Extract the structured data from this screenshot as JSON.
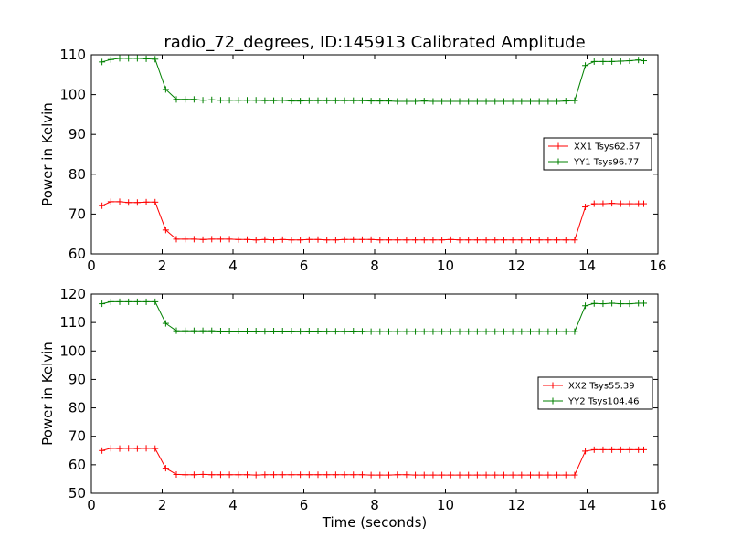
{
  "figure": {
    "title": "radio_72_degrees, ID:145913 Calibrated Amplitude",
    "xlabel": "Time (seconds)"
  },
  "chart_data": [
    {
      "type": "line",
      "title": "radio_72_degrees, ID:145913 Calibrated Amplitude",
      "xlabel": "",
      "ylabel": "Power in Kelvin",
      "xlim": [
        0,
        16
      ],
      "ylim": [
        60,
        110
      ],
      "xticks": [
        0,
        2,
        4,
        6,
        8,
        10,
        12,
        14,
        16
      ],
      "yticks": [
        60,
        70,
        80,
        90,
        100,
        110
      ],
      "grid": false,
      "legend_position": "center-right",
      "x": [
        0.3,
        0.55,
        0.8,
        1.05,
        1.3,
        1.55,
        1.8,
        2.1,
        2.4,
        2.65,
        2.9,
        3.15,
        3.4,
        3.65,
        3.9,
        4.15,
        4.4,
        4.65,
        4.9,
        5.15,
        5.4,
        5.65,
        5.9,
        6.15,
        6.4,
        6.65,
        6.9,
        7.15,
        7.4,
        7.65,
        7.9,
        8.15,
        8.4,
        8.65,
        8.9,
        9.15,
        9.4,
        9.65,
        9.9,
        10.15,
        10.4,
        10.65,
        10.9,
        11.15,
        11.4,
        11.65,
        11.9,
        12.15,
        12.4,
        12.65,
        12.9,
        13.15,
        13.4,
        13.65,
        13.95,
        14.2,
        14.45,
        14.7,
        14.95,
        15.2,
        15.45,
        15.6
      ],
      "series": [
        {
          "name": "XX1 Tsys62.57",
          "color": "#ff0000",
          "values": [
            72.1,
            73.1,
            73.1,
            72.9,
            72.9,
            73.0,
            73.0,
            66.0,
            63.7,
            63.7,
            63.7,
            63.6,
            63.7,
            63.7,
            63.7,
            63.6,
            63.6,
            63.5,
            63.6,
            63.5,
            63.6,
            63.5,
            63.5,
            63.6,
            63.6,
            63.5,
            63.5,
            63.6,
            63.6,
            63.6,
            63.6,
            63.5,
            63.5,
            63.5,
            63.5,
            63.5,
            63.5,
            63.5,
            63.5,
            63.6,
            63.5,
            63.5,
            63.5,
            63.5,
            63.5,
            63.5,
            63.5,
            63.5,
            63.5,
            63.5,
            63.5,
            63.5,
            63.5,
            63.5,
            71.8,
            72.6,
            72.6,
            72.7,
            72.6,
            72.6,
            72.6,
            72.6
          ]
        },
        {
          "name": "YY1 Tsys96.77",
          "color": "#008000",
          "values": [
            108.2,
            108.8,
            109.1,
            109.1,
            109.1,
            109.0,
            108.9,
            101.3,
            98.8,
            98.8,
            98.8,
            98.6,
            98.7,
            98.6,
            98.6,
            98.6,
            98.6,
            98.6,
            98.5,
            98.5,
            98.6,
            98.4,
            98.4,
            98.5,
            98.5,
            98.5,
            98.5,
            98.5,
            98.5,
            98.5,
            98.4,
            98.4,
            98.4,
            98.3,
            98.3,
            98.3,
            98.4,
            98.3,
            98.3,
            98.3,
            98.3,
            98.3,
            98.3,
            98.3,
            98.3,
            98.3,
            98.3,
            98.3,
            98.3,
            98.3,
            98.3,
            98.3,
            98.4,
            98.5,
            107.3,
            108.3,
            108.3,
            108.3,
            108.4,
            108.5,
            108.7,
            108.5
          ]
        }
      ]
    },
    {
      "type": "line",
      "title": "",
      "xlabel": "Time (seconds)",
      "ylabel": "Power in Kelvin",
      "xlim": [
        0,
        16
      ],
      "ylim": [
        50,
        120
      ],
      "xticks": [
        0,
        2,
        4,
        6,
        8,
        10,
        12,
        14,
        16
      ],
      "yticks": [
        50,
        60,
        70,
        80,
        90,
        100,
        110,
        120
      ],
      "grid": false,
      "legend_position": "center-right",
      "x": [
        0.3,
        0.55,
        0.8,
        1.05,
        1.3,
        1.55,
        1.8,
        2.1,
        2.4,
        2.65,
        2.9,
        3.15,
        3.4,
        3.65,
        3.9,
        4.15,
        4.4,
        4.65,
        4.9,
        5.15,
        5.4,
        5.65,
        5.9,
        6.15,
        6.4,
        6.65,
        6.9,
        7.15,
        7.4,
        7.65,
        7.9,
        8.15,
        8.4,
        8.65,
        8.9,
        9.15,
        9.4,
        9.65,
        9.9,
        10.15,
        10.4,
        10.65,
        10.9,
        11.15,
        11.4,
        11.65,
        11.9,
        12.15,
        12.4,
        12.65,
        12.9,
        13.15,
        13.4,
        13.65,
        13.95,
        14.2,
        14.45,
        14.7,
        14.95,
        15.2,
        15.45,
        15.6
      ],
      "series": [
        {
          "name": "XX2 Tsys55.39",
          "color": "#ff0000",
          "values": [
            65.0,
            65.8,
            65.7,
            65.8,
            65.7,
            65.8,
            65.7,
            58.8,
            56.6,
            56.5,
            56.5,
            56.6,
            56.5,
            56.5,
            56.5,
            56.5,
            56.5,
            56.4,
            56.5,
            56.5,
            56.5,
            56.5,
            56.5,
            56.5,
            56.5,
            56.5,
            56.5,
            56.5,
            56.5,
            56.5,
            56.4,
            56.4,
            56.4,
            56.5,
            56.5,
            56.4,
            56.4,
            56.4,
            56.4,
            56.4,
            56.4,
            56.4,
            56.4,
            56.4,
            56.4,
            56.4,
            56.4,
            56.4,
            56.4,
            56.4,
            56.4,
            56.4,
            56.4,
            56.4,
            64.8,
            65.3,
            65.3,
            65.3,
            65.3,
            65.3,
            65.3,
            65.3
          ]
        },
        {
          "name": "YY2 Tsys104.46",
          "color": "#008000",
          "values": [
            116.6,
            117.3,
            117.3,
            117.3,
            117.3,
            117.3,
            117.3,
            109.7,
            107.1,
            107.1,
            107.1,
            107.1,
            107.1,
            107.0,
            107.0,
            107.0,
            107.0,
            107.0,
            106.9,
            107.0,
            107.0,
            107.0,
            106.9,
            107.0,
            107.0,
            106.9,
            106.9,
            106.9,
            107.0,
            106.9,
            106.8,
            106.8,
            106.8,
            106.8,
            106.8,
            106.8,
            106.8,
            106.8,
            106.8,
            106.8,
            106.8,
            106.8,
            106.8,
            106.8,
            106.8,
            106.8,
            106.8,
            106.8,
            106.8,
            106.8,
            106.8,
            106.8,
            106.8,
            106.8,
            115.9,
            116.7,
            116.6,
            116.8,
            116.6,
            116.6,
            116.8,
            116.8
          ]
        }
      ]
    }
  ]
}
